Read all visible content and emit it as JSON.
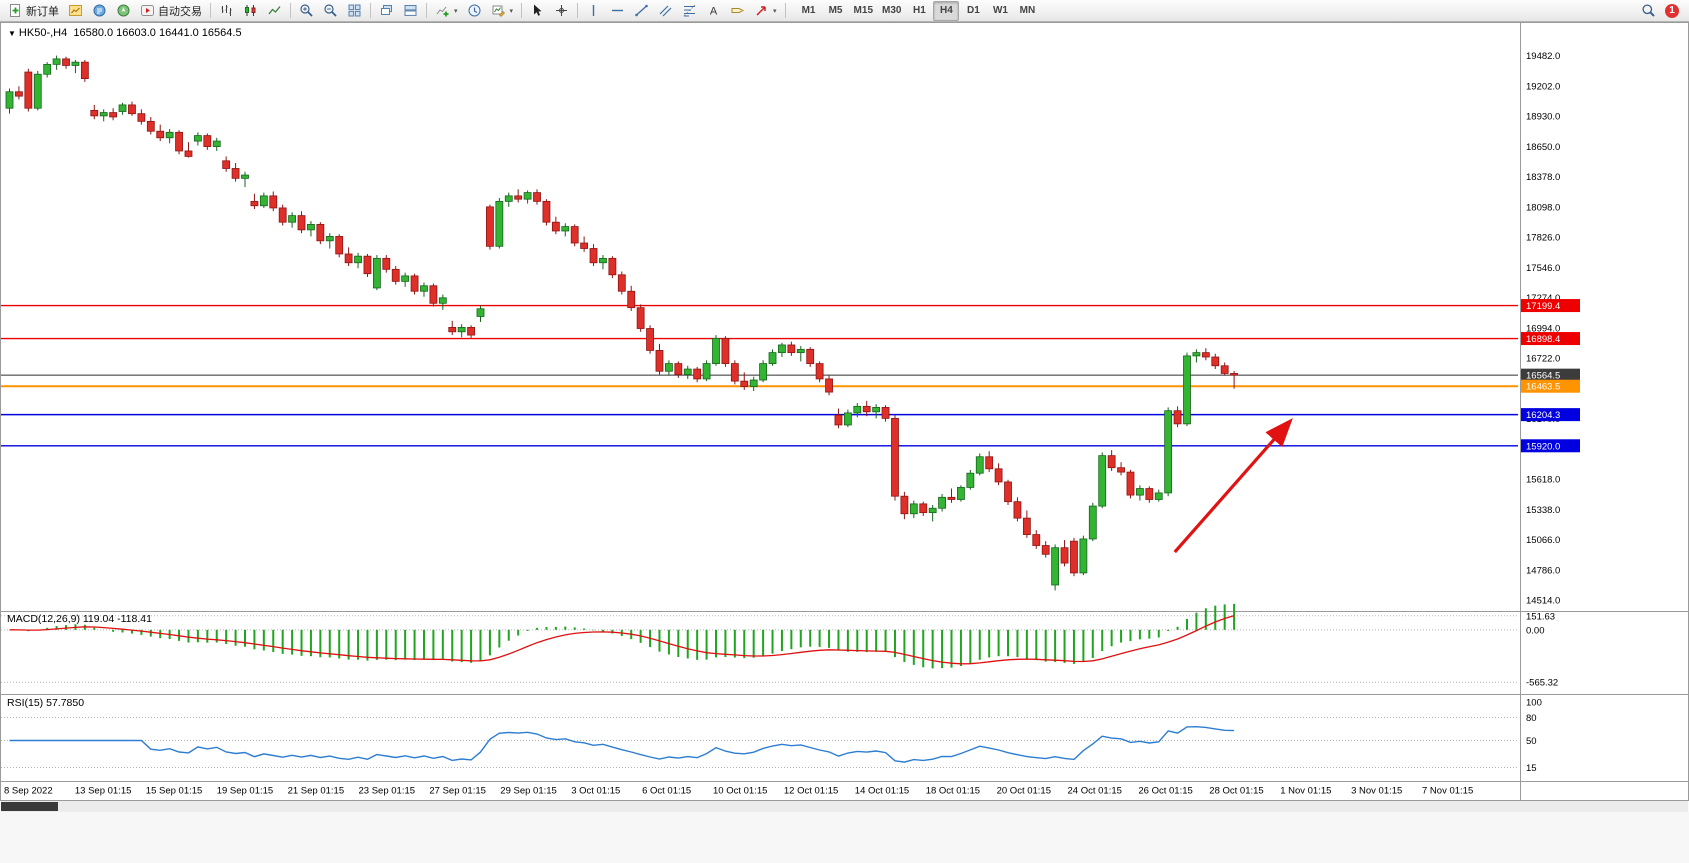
{
  "toolbar": {
    "new_order_label": "新订单",
    "autotrading_label": "自动交易",
    "timeframes": [
      "M1",
      "M5",
      "M15",
      "M30",
      "H1",
      "H4",
      "D1",
      "W1",
      "MN"
    ],
    "active_timeframe": "H4",
    "notification_badge": "1",
    "icons": [
      "new-order",
      "market-watch",
      "data-window",
      "navigator",
      "autotrading",
      "bar-chart",
      "candlestick-chart",
      "line-chart",
      "zoom-in",
      "zoom-out",
      "tile-windows",
      "cascade-windows",
      "add-indicator",
      "periods-clock",
      "templates",
      "cursor",
      "crosshair",
      "vertical-line",
      "horizontal-line",
      "trendline",
      "equidistant-channel",
      "fibonacci",
      "text",
      "text-label",
      "arrows",
      "search",
      "notification"
    ]
  },
  "chart": {
    "symbol_period": "HK50-,H4",
    "ohlc_text": "16580.0 16603.0 16441.0 16564.5"
  },
  "indicators": {
    "macd_label": "MACD(12,26,9)",
    "macd_values": "119.04 -118.41",
    "rsi_label": "RSI(15)",
    "rsi_value": "57.7850"
  },
  "chart_data": [
    {
      "type": "candlestick",
      "symbol": "HK50-",
      "period": "H4",
      "open": 16580.0,
      "high": 16603.0,
      "low": 16441.0,
      "close": 16564.5,
      "ylim": [
        14440,
        19750
      ],
      "y_ticks": [
        19482,
        19202,
        18930,
        18650,
        18378,
        18098,
        17826,
        17546,
        17274,
        16994,
        16722,
        16446,
        16170,
        15898,
        15618,
        15338,
        15066,
        14786,
        14514
      ],
      "x_labels": [
        "8 Sep 2022",
        "13 Sep 01:15",
        "15 Sep 01:15",
        "19 Sep 01:15",
        "21 Sep 01:15",
        "23 Sep 01:15",
        "27 Sep 01:15",
        "29 Sep 01:15",
        "3 Oct 01:15",
        "6 Oct 01:15",
        "10 Oct 01:15",
        "12 Oct 01:15",
        "14 Oct 01:15",
        "18 Oct 01:15",
        "20 Oct 01:15",
        "24 Oct 01:15",
        "26 Oct 01:15",
        "28 Oct 01:15",
        "1 Nov 01:15",
        "3 Nov 01:15",
        "7 Nov 01:15"
      ],
      "up_color": "#33b533",
      "down_color": "#de2f28",
      "hlines": [
        {
          "price": 17199.4,
          "color": "#ee0000",
          "box": "#ee0000",
          "text": "17199.4",
          "width": 1.4
        },
        {
          "price": 16898.4,
          "color": "#ee0000",
          "box": "#ee0000",
          "text": "16898.4",
          "width": 1.4
        },
        {
          "price": 16564.5,
          "color": "#2f2f2f",
          "box": "#3c3c3c",
          "text": "16564.5",
          "width": 1
        },
        {
          "price": 16463.5,
          "color": "#ff9400",
          "box": "#ff9400",
          "text": "16463.5",
          "width": 2
        },
        {
          "price": 16204.3,
          "color": "#0000e0",
          "box": "#0000e0",
          "text": "16204.3",
          "width": 1.4
        },
        {
          "price": 15920.0,
          "color": "#0000e0",
          "box": "#0000e0",
          "text": "15920.0",
          "width": 1.4
        }
      ],
      "arrow": {
        "from_index": 123.7,
        "from_price": 14950,
        "to_index": 135.9,
        "to_price": 16140,
        "color": "#e01212"
      },
      "candles": [
        [
          19000,
          19180,
          18950,
          19150
        ],
        [
          19150,
          19200,
          19080,
          19110
        ],
        [
          19330,
          19360,
          18970,
          19000
        ],
        [
          19000,
          19340,
          18980,
          19310
        ],
        [
          19310,
          19420,
          19280,
          19400
        ],
        [
          19400,
          19480,
          19350,
          19450
        ],
        [
          19450,
          19470,
          19360,
          19390
        ],
        [
          19390,
          19440,
          19320,
          19420
        ],
        [
          19420,
          19440,
          19240,
          19270
        ],
        [
          18980,
          19030,
          18900,
          18930
        ],
        [
          18930,
          18990,
          18880,
          18960
        ],
        [
          18960,
          19000,
          18890,
          18920
        ],
        [
          18970,
          19050,
          18940,
          19030
        ],
        [
          19030,
          19060,
          18930,
          18950
        ],
        [
          18950,
          18990,
          18850,
          18880
        ],
        [
          18880,
          18920,
          18760,
          18790
        ],
        [
          18790,
          18850,
          18700,
          18730
        ],
        [
          18730,
          18810,
          18680,
          18780
        ],
        [
          18780,
          18800,
          18580,
          18610
        ],
        [
          18610,
          18690,
          18550,
          18560
        ],
        [
          18700,
          18780,
          18660,
          18750
        ],
        [
          18750,
          18770,
          18620,
          18650
        ],
        [
          18650,
          18730,
          18610,
          18700
        ],
        [
          18520,
          18560,
          18420,
          18450
        ],
        [
          18450,
          18500,
          18330,
          18360
        ],
        [
          18360,
          18420,
          18280,
          18390
        ],
        [
          18150,
          18220,
          18080,
          18110
        ],
        [
          18110,
          18230,
          18090,
          18200
        ],
        [
          18200,
          18240,
          18060,
          18090
        ],
        [
          18090,
          18120,
          17930,
          17960
        ],
        [
          17960,
          18050,
          17910,
          18020
        ],
        [
          18020,
          18060,
          17860,
          17890
        ],
        [
          17890,
          17970,
          17830,
          17940
        ],
        [
          17940,
          17960,
          17760,
          17790
        ],
        [
          17790,
          17860,
          17720,
          17830
        ],
        [
          17830,
          17850,
          17640,
          17670
        ],
        [
          17670,
          17730,
          17560,
          17590
        ],
        [
          17590,
          17680,
          17540,
          17650
        ],
        [
          17650,
          17670,
          17460,
          17490
        ],
        [
          17360,
          17660,
          17340,
          17630
        ],
        [
          17630,
          17660,
          17500,
          17530
        ],
        [
          17530,
          17560,
          17390,
          17420
        ],
        [
          17420,
          17500,
          17370,
          17470
        ],
        [
          17470,
          17490,
          17300,
          17330
        ],
        [
          17330,
          17410,
          17280,
          17380
        ],
        [
          17380,
          17400,
          17190,
          17220
        ],
        [
          17220,
          17300,
          17160,
          17270
        ],
        [
          17000,
          17060,
          16930,
          16960
        ],
        [
          16960,
          17030,
          16910,
          17000
        ],
        [
          17000,
          17020,
          16900,
          16930
        ],
        [
          17100,
          17200,
          17050,
          17170
        ],
        [
          18100,
          18120,
          17710,
          17740
        ],
        [
          17740,
          18180,
          17720,
          18150
        ],
        [
          18150,
          18230,
          18100,
          18200
        ],
        [
          18200,
          18260,
          18140,
          18170
        ],
        [
          18170,
          18250,
          18130,
          18230
        ],
        [
          18230,
          18260,
          18120,
          18150
        ],
        [
          18150,
          18170,
          17930,
          17960
        ],
        [
          17960,
          18010,
          17850,
          17880
        ],
        [
          17880,
          17950,
          17830,
          17920
        ],
        [
          17920,
          17940,
          17740,
          17770
        ],
        [
          17770,
          17830,
          17690,
          17720
        ],
        [
          17720,
          17760,
          17560,
          17590
        ],
        [
          17590,
          17660,
          17530,
          17630
        ],
        [
          17630,
          17650,
          17450,
          17480
        ],
        [
          17480,
          17510,
          17300,
          17330
        ],
        [
          17330,
          17380,
          17150,
          17180
        ],
        [
          17180,
          17210,
          16960,
          16990
        ],
        [
          16990,
          17020,
          16760,
          16790
        ],
        [
          16790,
          16850,
          16570,
          16600
        ],
        [
          16600,
          16700,
          16560,
          16670
        ],
        [
          16670,
          16690,
          16540,
          16570
        ],
        [
          16570,
          16650,
          16530,
          16620
        ],
        [
          16620,
          16640,
          16500,
          16530
        ],
        [
          16530,
          16700,
          16510,
          16670
        ],
        [
          16670,
          16930,
          16650,
          16900
        ],
        [
          16900,
          16920,
          16640,
          16670
        ],
        [
          16670,
          16700,
          16480,
          16510
        ],
        [
          16510,
          16590,
          16430,
          16460
        ],
        [
          16460,
          16550,
          16420,
          16520
        ],
        [
          16520,
          16700,
          16500,
          16670
        ],
        [
          16670,
          16800,
          16650,
          16770
        ],
        [
          16770,
          16860,
          16730,
          16840
        ],
        [
          16840,
          16870,
          16740,
          16770
        ],
        [
          16770,
          16830,
          16690,
          16800
        ],
        [
          16800,
          16820,
          16640,
          16670
        ],
        [
          16670,
          16690,
          16500,
          16530
        ],
        [
          16530,
          16560,
          16380,
          16410
        ],
        [
          16200,
          16260,
          16080,
          16110
        ],
        [
          16110,
          16250,
          16090,
          16220
        ],
        [
          16220,
          16310,
          16180,
          16280
        ],
        [
          16280,
          16330,
          16190,
          16230
        ],
        [
          16230,
          16300,
          16170,
          16270
        ],
        [
          16270,
          16290,
          16140,
          16170
        ],
        [
          16170,
          16200,
          15420,
          15460
        ],
        [
          15460,
          15500,
          15250,
          15300
        ],
        [
          15300,
          15420,
          15260,
          15390
        ],
        [
          15390,
          15410,
          15280,
          15310
        ],
        [
          15310,
          15380,
          15230,
          15350
        ],
        [
          15350,
          15480,
          15320,
          15450
        ],
        [
          15450,
          15530,
          15400,
          15430
        ],
        [
          15430,
          15560,
          15410,
          15540
        ],
        [
          15540,
          15700,
          15520,
          15670
        ],
        [
          15670,
          15850,
          15650,
          15820
        ],
        [
          15820,
          15870,
          15680,
          15710
        ],
        [
          15710,
          15760,
          15560,
          15590
        ],
        [
          15590,
          15610,
          15380,
          15410
        ],
        [
          15410,
          15450,
          15230,
          15260
        ],
        [
          15260,
          15330,
          15080,
          15110
        ],
        [
          15110,
          15150,
          14980,
          15010
        ],
        [
          15010,
          15050,
          14900,
          14930
        ],
        [
          14650,
          15020,
          14600,
          14990
        ],
        [
          14990,
          15060,
          14820,
          14850
        ],
        [
          15050,
          15080,
          14730,
          14760
        ],
        [
          14760,
          15100,
          14740,
          15070
        ],
        [
          15070,
          15400,
          15050,
          15370
        ],
        [
          15370,
          15860,
          15350,
          15830
        ],
        [
          15830,
          15880,
          15690,
          15720
        ],
        [
          15720,
          15770,
          15650,
          15680
        ],
        [
          15680,
          15700,
          15440,
          15470
        ],
        [
          15470,
          15560,
          15420,
          15530
        ],
        [
          15530,
          15550,
          15400,
          15430
        ],
        [
          15430,
          15520,
          15410,
          15490
        ],
        [
          15490,
          16270,
          15460,
          16240
        ],
        [
          16240,
          16280,
          16090,
          16120
        ],
        [
          16120,
          16770,
          16100,
          16740
        ],
        [
          16740,
          16800,
          16680,
          16770
        ],
        [
          16770,
          16810,
          16700,
          16730
        ],
        [
          16730,
          16760,
          16620,
          16650
        ],
        [
          16650,
          16680,
          16560,
          16580
        ],
        [
          16580,
          16603,
          16441,
          16564.5
        ]
      ]
    },
    {
      "type": "macd",
      "label": "MACD(12,26,9)",
      "value_main": 119.04,
      "value_signal": -118.41,
      "fast": 12,
      "slow": 26,
      "signal": 9,
      "ylim": [
        -660,
        160
      ],
      "y_ticks": [
        151.63,
        0,
        -565.32
      ],
      "histogram_color": "#1fa51f",
      "signal_color": "#e01010"
    },
    {
      "type": "rsi",
      "label": "RSI(15)",
      "value": 57.785,
      "period": 15,
      "ylim": [
        0,
        100
      ],
      "y_ticks": [
        100,
        80,
        50,
        15
      ],
      "levels": [
        80,
        50,
        15
      ],
      "line_color": "#2d7dd2"
    }
  ]
}
